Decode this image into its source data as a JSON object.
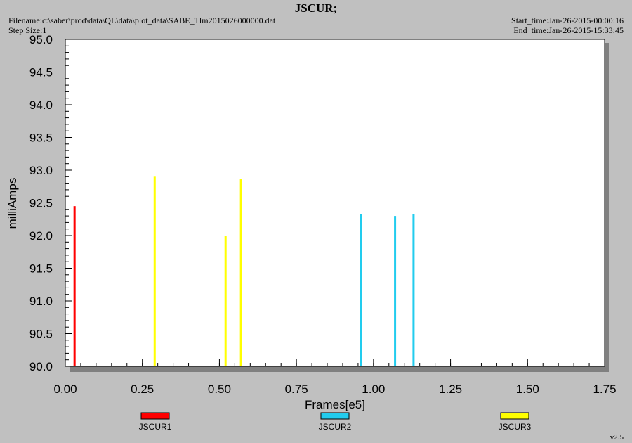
{
  "header": {
    "title": "JSCUR;",
    "filename": "Filename:c:\\saber\\prod\\data\\QL\\data\\plot_data\\SABE_Tlm2015026000000.dat",
    "step_size": "Step Size:1",
    "start_time": "Start_time:Jan-26-2015-00:00:16",
    "end_time": "End_time:Jan-26-2015-15:33:45"
  },
  "footer": {
    "version": "v2.5"
  },
  "colors": {
    "JSCUR1": "#ff0000",
    "JSCUR2": "#22ccee",
    "JSCUR3": "#ffff00"
  },
  "chart_data": {
    "type": "bar",
    "title": "JSCUR;",
    "xlabel": "Frames[e5]",
    "ylabel": "milliAmps",
    "xlim": [
      0.0,
      1.75
    ],
    "ylim": [
      90.0,
      95.0
    ],
    "x_ticks": [
      "0.00",
      "0.25",
      "0.50",
      "0.75",
      "1.00",
      "1.25",
      "1.50",
      "1.75"
    ],
    "y_ticks": [
      "90.0",
      "90.5",
      "91.0",
      "91.5",
      "92.0",
      "92.5",
      "93.0",
      "93.5",
      "94.0",
      "94.5",
      "95.0"
    ],
    "grid": false,
    "legend_placement": "bottom",
    "series": [
      {
        "name": "JSCUR1",
        "points": [
          {
            "x": 0.03,
            "y": 92.45
          }
        ]
      },
      {
        "name": "JSCUR2",
        "points": [
          {
            "x": 0.96,
            "y": 92.33
          },
          {
            "x": 1.07,
            "y": 92.3
          },
          {
            "x": 1.13,
            "y": 92.33
          }
        ]
      },
      {
        "name": "JSCUR3",
        "points": [
          {
            "x": 0.29,
            "y": 92.9
          },
          {
            "x": 0.52,
            "y": 92.0
          },
          {
            "x": 0.57,
            "y": 92.87
          }
        ]
      }
    ]
  }
}
